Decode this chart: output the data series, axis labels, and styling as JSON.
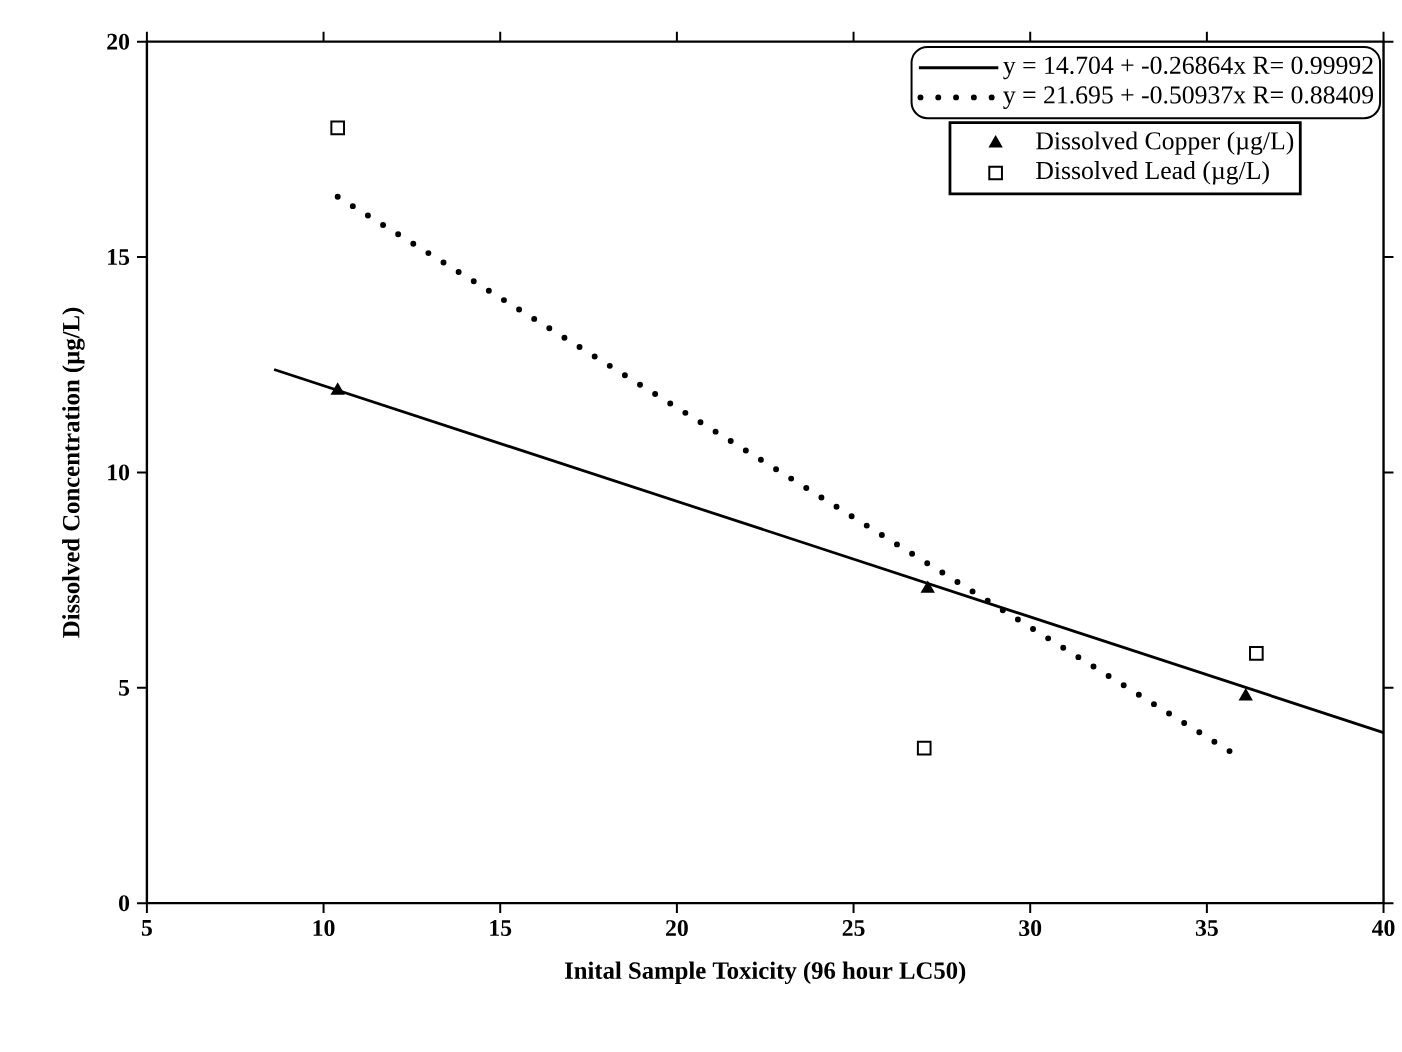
{
  "chart_data": {
    "type": "scatter",
    "xlabel": "Inital Sample Toxicity (96 hour LC50)",
    "ylabel": "Dissolved Concentration (µg/L)",
    "xlim": [
      5,
      40
    ],
    "xticks": [
      5,
      10,
      15,
      20,
      25,
      30,
      35,
      40
    ],
    "ylim": [
      0,
      20
    ],
    "yticks": [
      0,
      5,
      10,
      15,
      20
    ],
    "grid": false,
    "legend": "top right",
    "series": [
      {
        "name": "y = 14.704 + -0.26864x R= 0.99992",
        "type": "line",
        "line_style": "solid",
        "color": "#000000",
        "x": [
          8.6,
          40
        ],
        "values": [
          12.39,
          3.96
        ]
      },
      {
        "name": "y = 21.695 + -0.50937x R= 0.88409",
        "type": "line",
        "line_style": "dotted",
        "color": "#000000",
        "x": [
          10.4,
          35.7
        ],
        "values": [
          16.4,
          3.5
        ]
      },
      {
        "name": "Dissolved Copper (µg/L)",
        "marker": "triangle",
        "color": "#000000",
        "x": [
          10.4,
          27.1,
          36.1
        ],
        "values": [
          11.9,
          7.3,
          4.8
        ]
      },
      {
        "name": "Dissolved Lead (µg/L)",
        "marker": "square",
        "color": "#000000",
        "x": [
          10.4,
          27.0,
          36.4
        ],
        "values": [
          18.0,
          3.6,
          5.8
        ]
      }
    ]
  }
}
